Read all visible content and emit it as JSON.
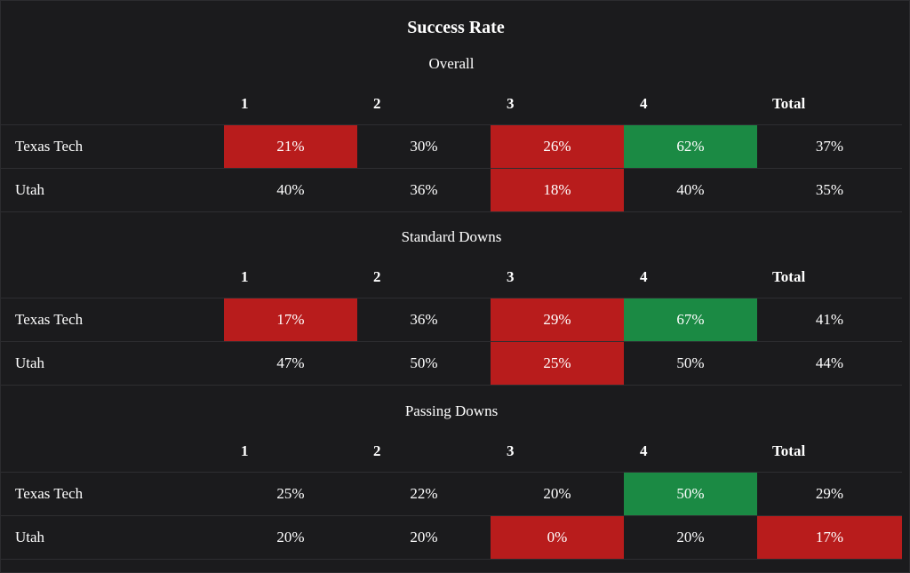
{
  "title": "Success Rate",
  "colors": {
    "background": "#1b1b1d",
    "bad": "#b81c1c",
    "good": "#1b8a44"
  },
  "columns": [
    "1",
    "2",
    "3",
    "4",
    "Total"
  ],
  "sections": [
    {
      "name": "Overall",
      "rows": [
        {
          "team": "Texas Tech",
          "values": [
            "21%",
            "30%",
            "26%",
            "62%",
            "37%"
          ],
          "status": [
            "bad",
            "none",
            "bad",
            "good",
            "none"
          ]
        },
        {
          "team": "Utah",
          "values": [
            "40%",
            "36%",
            "18%",
            "40%",
            "35%"
          ],
          "status": [
            "none",
            "none",
            "bad",
            "none",
            "none"
          ]
        }
      ]
    },
    {
      "name": "Standard Downs",
      "rows": [
        {
          "team": "Texas Tech",
          "values": [
            "17%",
            "36%",
            "29%",
            "67%",
            "41%"
          ],
          "status": [
            "bad",
            "none",
            "bad",
            "good",
            "none"
          ]
        },
        {
          "team": "Utah",
          "values": [
            "47%",
            "50%",
            "25%",
            "50%",
            "44%"
          ],
          "status": [
            "none",
            "none",
            "bad",
            "none",
            "none"
          ]
        }
      ]
    },
    {
      "name": "Passing Downs",
      "rows": [
        {
          "team": "Texas Tech",
          "values": [
            "25%",
            "22%",
            "20%",
            "50%",
            "29%"
          ],
          "status": [
            "none",
            "none",
            "none",
            "good",
            "none"
          ]
        },
        {
          "team": "Utah",
          "values": [
            "20%",
            "20%",
            "0%",
            "20%",
            "17%"
          ],
          "status": [
            "none",
            "none",
            "bad",
            "none",
            "bad"
          ]
        }
      ]
    }
  ]
}
